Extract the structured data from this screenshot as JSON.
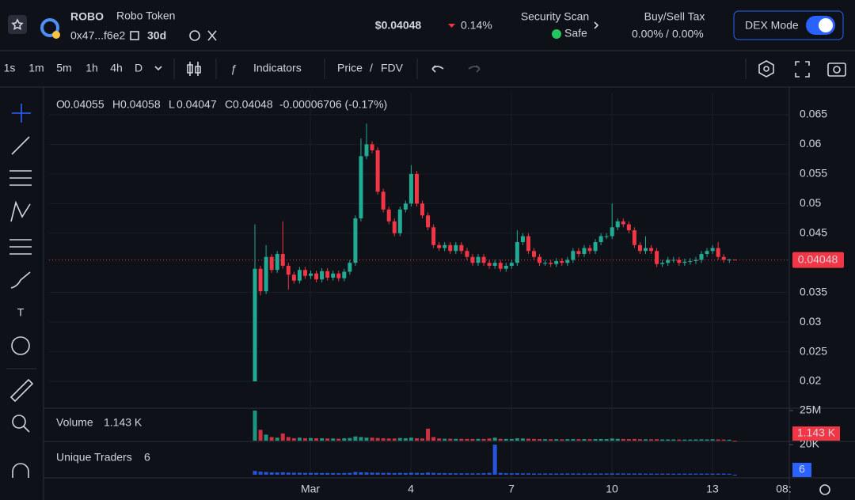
{
  "header": {
    "symbol": "ROBO",
    "name": "Robo Token",
    "address": "0x47...f6e2",
    "age": "30d",
    "price": "$0.04048",
    "change": "0.14%",
    "security_label": "Security Scan",
    "security_status": "Safe",
    "tax_label": "Buy/Sell Tax",
    "buy_tax": "0.00%",
    "tax_separator": "/",
    "sell_tax": "0.00%",
    "mode": "DEX Mode"
  },
  "toolbar": {
    "intervals": [
      "1s",
      "1m",
      "5m",
      "1h",
      "4h",
      "D"
    ],
    "active_interval": 4,
    "indicators": "Indicators",
    "price": "Price",
    "separator": "/",
    "fdv": "FDV"
  },
  "chart_data": {
    "type": "candlestick",
    "up_color": "#22ab94",
    "down_color": "#f23645",
    "ohlc_labels": [
      "O",
      "H",
      "L",
      "C"
    ],
    "change": "-0.00006706 (-0.17%)",
    "open": [
      0.02,
      0.039,
      0.0352,
      0.041,
      0.0388,
      0.0415,
      0.0395,
      0.038,
      0.037,
      0.0388,
      0.0378,
      0.0382,
      0.0372,
      0.0386,
      0.0375,
      0.0382,
      0.0374,
      0.0385,
      0.04,
      0.0475,
      0.058,
      0.06,
      0.059,
      0.052,
      0.049,
      0.047,
      0.045,
      0.049,
      0.05,
      0.055,
      0.05,
      0.048,
      0.046,
      0.043,
      0.0425,
      0.043,
      0.042,
      0.043,
      0.042,
      0.041,
      0.04,
      0.041,
      0.04,
      0.0395,
      0.04,
      0.039,
      0.0395,
      0.04,
      0.0435,
      0.0445,
      0.042,
      0.041,
      0.04,
      0.04,
      0.0398,
      0.0403,
      0.04,
      0.0405,
      0.042,
      0.0415,
      0.0425,
      0.042,
      0.0435,
      0.0445,
      0.0445,
      0.046,
      0.047,
      0.0465,
      0.0455,
      0.043,
      0.042,
      0.0425,
      0.042,
      0.0398,
      0.04,
      0.0405,
      0.0405,
      0.04,
      0.0402,
      0.0403,
      0.0405,
      0.0415,
      0.042,
      0.0425,
      0.041,
      0.0405,
      0.04055
    ],
    "high": [
      0.0465,
      0.0395,
      0.043,
      0.0415,
      0.042,
      0.047,
      0.04,
      0.0385,
      0.0393,
      0.0393,
      0.0387,
      0.0387,
      0.0391,
      0.0391,
      0.0387,
      0.0387,
      0.039,
      0.0405,
      0.048,
      0.061,
      0.0635,
      0.0605,
      0.0595,
      0.0525,
      0.0495,
      0.0475,
      0.0495,
      0.0505,
      0.0565,
      0.0555,
      0.0505,
      0.0485,
      0.0465,
      0.0435,
      0.0435,
      0.0435,
      0.0435,
      0.0435,
      0.0425,
      0.0415,
      0.0415,
      0.0415,
      0.0405,
      0.0405,
      0.0405,
      0.04,
      0.0405,
      0.0455,
      0.045,
      0.045,
      0.0425,
      0.0415,
      0.0405,
      0.0405,
      0.0408,
      0.0408,
      0.041,
      0.0425,
      0.0425,
      0.043,
      0.043,
      0.044,
      0.045,
      0.045,
      0.05,
      0.0475,
      0.0475,
      0.047,
      0.046,
      0.0435,
      0.0445,
      0.043,
      0.0425,
      0.0405,
      0.041,
      0.041,
      0.041,
      0.0407,
      0.0408,
      0.041,
      0.042,
      0.0425,
      0.043,
      0.0435,
      0.0415,
      0.0407,
      0.04058
    ],
    "low": [
      0.02,
      0.0345,
      0.0347,
      0.0383,
      0.0383,
      0.039,
      0.0355,
      0.0365,
      0.0365,
      0.0373,
      0.0373,
      0.0367,
      0.0367,
      0.037,
      0.037,
      0.0369,
      0.0369,
      0.038,
      0.0395,
      0.047,
      0.0575,
      0.0585,
      0.0515,
      0.0485,
      0.0465,
      0.0445,
      0.0445,
      0.0485,
      0.0495,
      0.0495,
      0.0475,
      0.0455,
      0.0425,
      0.042,
      0.042,
      0.0415,
      0.0415,
      0.0415,
      0.0405,
      0.0395,
      0.0395,
      0.0395,
      0.039,
      0.039,
      0.0385,
      0.0385,
      0.039,
      0.0395,
      0.043,
      0.0415,
      0.0405,
      0.0395,
      0.0395,
      0.0393,
      0.0393,
      0.0395,
      0.0395,
      0.04,
      0.041,
      0.041,
      0.0415,
      0.0415,
      0.043,
      0.044,
      0.044,
      0.0455,
      0.046,
      0.045,
      0.0425,
      0.0415,
      0.0415,
      0.0415,
      0.0393,
      0.0393,
      0.0395,
      0.04,
      0.0395,
      0.0395,
      0.0397,
      0.0398,
      0.04,
      0.041,
      0.0415,
      0.0405,
      0.04,
      0.04,
      0.04047
    ],
    "close": [
      0.039,
      0.0352,
      0.041,
      0.0388,
      0.0415,
      0.0395,
      0.038,
      0.037,
      0.0388,
      0.0378,
      0.0382,
      0.0372,
      0.0386,
      0.0375,
      0.0382,
      0.0374,
      0.0385,
      0.04,
      0.0475,
      0.058,
      0.06,
      0.059,
      0.052,
      0.049,
      0.047,
      0.045,
      0.049,
      0.05,
      0.055,
      0.05,
      0.048,
      0.046,
      0.043,
      0.0425,
      0.043,
      0.042,
      0.043,
      0.042,
      0.041,
      0.04,
      0.041,
      0.04,
      0.0395,
      0.04,
      0.039,
      0.0395,
      0.04,
      0.0435,
      0.0445,
      0.042,
      0.041,
      0.04,
      0.04,
      0.0398,
      0.0403,
      0.04,
      0.0405,
      0.042,
      0.0415,
      0.0425,
      0.042,
      0.0435,
      0.0445,
      0.0445,
      0.046,
      0.047,
      0.0465,
      0.0455,
      0.043,
      0.042,
      0.0425,
      0.042,
      0.0398,
      0.04,
      0.0405,
      0.0405,
      0.04,
      0.0402,
      0.0403,
      0.0405,
      0.0415,
      0.042,
      0.0425,
      0.041,
      0.0405,
      0.04055,
      0.04048
    ],
    "ylim": [
      0.0156,
      0.0686
    ],
    "yticks": [
      0.065,
      0.06,
      0.055,
      0.05,
      0.045,
      0.035,
      0.03,
      0.025,
      0.02
    ],
    "grid": true,
    "x_labels": [
      "Mar",
      "4",
      "7",
      "10",
      "13",
      "08:"
    ],
    "volume": {
      "name": "Volume",
      "last_label": "1.143 K",
      "ylim": [
        0,
        25000000
      ],
      "yticks": [
        {
          "value": 25000000,
          "label": "25M"
        }
      ],
      "values": [
        25000000,
        9000000,
        5000000,
        3000000,
        2500000,
        6000000,
        3000000,
        2000000,
        2500000,
        2000000,
        2200000,
        2000000,
        2000000,
        1800000,
        1800000,
        1600000,
        2000000,
        2200000,
        3500000,
        3000000,
        2500000,
        2500000,
        2200000,
        2000000,
        1800000,
        1800000,
        2200000,
        2000000,
        2500000,
        2000000,
        1800000,
        10000000,
        3000000,
        1800000,
        1600000,
        1600000,
        1500000,
        1500000,
        1400000,
        1400000,
        1500000,
        1400000,
        1800000,
        2500000,
        1500000,
        1400000,
        1400000,
        2000000,
        1800000,
        1600000,
        1400000,
        1300000,
        1200000,
        1200000,
        1200000,
        1100000,
        1200000,
        1300000,
        1200000,
        1300000,
        1200000,
        1300000,
        1400000,
        1300000,
        1800000,
        1500000,
        1400000,
        1300000,
        1400000,
        1200000,
        1100000,
        1100000,
        1200000,
        1000000,
        1000000,
        1000000,
        900000,
        900000,
        900000,
        1000000,
        1100000,
        1000000,
        1100000,
        1000000,
        900000,
        800000,
        1143
      ]
    },
    "traders": {
      "name": "Unique Traders",
      "color": "#2962ff",
      "ylim": [
        0,
        20000
      ],
      "yticks": [
        {
          "value": 20000,
          "label": "20K"
        }
      ],
      "values": [
        2500,
        2000,
        1800,
        1500,
        1500,
        1600,
        1400,
        1300,
        1300,
        1200,
        1200,
        1200,
        1100,
        1100,
        1100,
        1000,
        1100,
        1200,
        1800,
        1600,
        1500,
        1400,
        1300,
        1200,
        1200,
        1100,
        1200,
        1100,
        1300,
        1200,
        1100,
        1400,
        1200,
        1000,
        1000,
        1000,
        900,
        900,
        900,
        900,
        900,
        1000,
        1200,
        20000,
        1200,
        1000,
        900,
        1000,
        900,
        900,
        800,
        800,
        800,
        800,
        800,
        800,
        800,
        800,
        800,
        800,
        800,
        800,
        800,
        800,
        900,
        800,
        800,
        800,
        800,
        800,
        700,
        700,
        700,
        700,
        700,
        700,
        700,
        700,
        700,
        700,
        700,
        700,
        700,
        700,
        700,
        600,
        6
      ]
    }
  }
}
